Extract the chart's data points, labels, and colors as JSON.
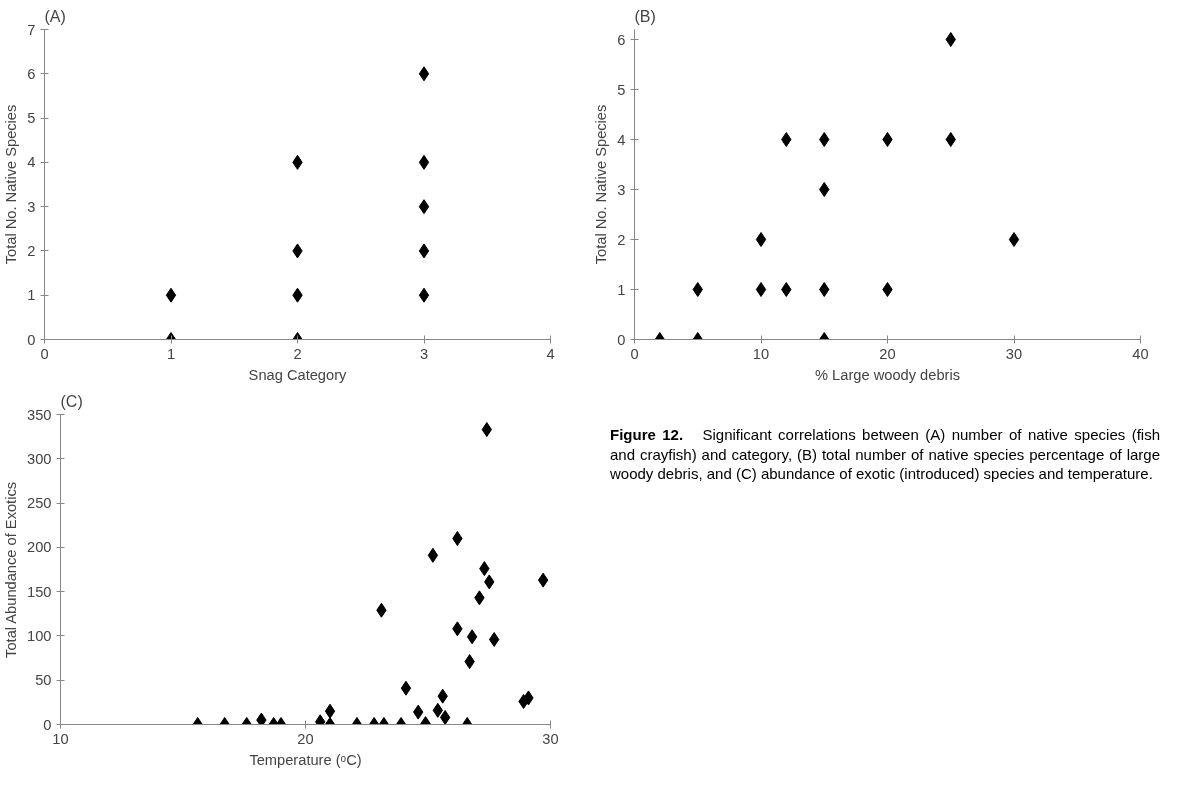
{
  "chart_data": [
    {
      "type": "scatter",
      "title": "(A)",
      "xlabel": "Snag Category",
      "ylabel": "Total No. Native Species",
      "marker": "diamond",
      "grid": false,
      "xlim": [
        0,
        4
      ],
      "xticks": [
        0,
        1,
        2,
        3,
        4
      ],
      "ylim": [
        0,
        7
      ],
      "yticks": [
        0,
        1,
        2,
        3,
        4,
        5,
        6,
        7
      ],
      "series": [
        {
          "color": "#000000",
          "x": [
            1,
            1,
            2,
            2,
            2,
            2,
            3,
            3,
            3,
            3,
            3
          ],
          "values": [
            0,
            1,
            0,
            1,
            2,
            4,
            1,
            2,
            3,
            4,
            6
          ]
        }
      ]
    },
    {
      "type": "scatter",
      "title": "(B)",
      "xlabel": "% Large woody debris",
      "ylabel": "Total No. Native Species",
      "marker": "diamond",
      "grid": false,
      "xlim": [
        0,
        40
      ],
      "xticks": [
        0,
        10,
        20,
        30,
        40
      ],
      "ylim": [
        0,
        6.2
      ],
      "yticks": [
        0,
        1,
        2,
        3,
        4,
        5,
        6
      ],
      "series": [
        {
          "color": "#000000",
          "x": [
            2,
            5,
            5,
            10,
            10,
            12,
            12,
            15,
            15,
            15,
            15,
            20,
            20,
            25,
            25,
            30
          ],
          "values": [
            0,
            0,
            1,
            1,
            2,
            1,
            4,
            0,
            1,
            3,
            4,
            1,
            4,
            4,
            6,
            2
          ]
        }
      ]
    },
    {
      "type": "scatter",
      "title": "(C)",
      "xlabel": "Temperature (ᵒC)",
      "ylabel": "Total Abundance of Exotics",
      "marker": "diamond",
      "grid": false,
      "xlim": [
        10,
        30
      ],
      "xticks": [
        10,
        20,
        30
      ],
      "ylim": [
        0,
        350
      ],
      "yticks": [
        0,
        50,
        100,
        150,
        200,
        250,
        300,
        350
      ],
      "series": [
        {
          "color": "#000000",
          "x": [
            15.6,
            16.7,
            17.6,
            18.2,
            18.7,
            19.0,
            20.6,
            21.0,
            21.0,
            22.1,
            22.8,
            23.2,
            23.9,
            23.1,
            24.1,
            24.6,
            24.9,
            25.2,
            25.6,
            25.4,
            25.7,
            26.2,
            26.2,
            26.6,
            26.7,
            26.8,
            27.1,
            27.3,
            27.5,
            27.4,
            27.7,
            28.9,
            29.1,
            29.7
          ],
          "values": [
            0,
            0,
            0,
            5,
            0,
            0,
            3,
            15,
            0,
            0,
            0,
            0,
            0,
            129,
            41,
            14,
            1,
            191,
            32,
            16,
            8,
            210,
            108,
            0,
            71,
            99,
            143,
            176,
            161,
            333,
            96,
            26,
            30,
            163
          ]
        }
      ]
    },
    {
      "type": "other",
      "title": "Figure 12.",
      "annotations": [
        "Significant correlations between (A) number of native species (fish and crayfish) and category, (B) total number of native species percentage of large woody debris, and (C) abundance of exotic (introduced) species and temperature."
      ]
    }
  ]
}
